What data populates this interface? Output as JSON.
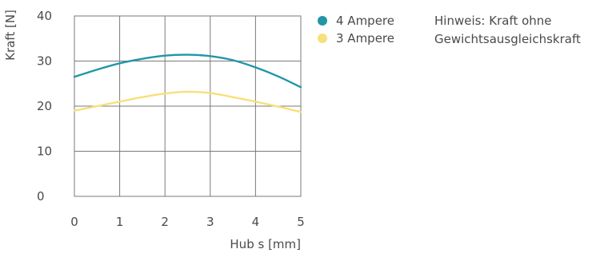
{
  "chart_data": {
    "type": "line",
    "xlabel": "Hub s [mm]",
    "ylabel": "Kraft [N]",
    "xlim": [
      0,
      5
    ],
    "ylim": [
      0,
      40
    ],
    "xticks": [
      "0",
      "1",
      "2",
      "3",
      "4",
      "5"
    ],
    "yticks": [
      "0",
      "10",
      "20",
      "30",
      "40"
    ],
    "grid": true,
    "legend_position": "right",
    "series": [
      {
        "name": "4 Ampere",
        "color": "#2196a6",
        "x": [
          0,
          0.5,
          1,
          1.5,
          2,
          2.5,
          3,
          3.5,
          4,
          4.5,
          5
        ],
        "y": [
          26.5,
          28.1,
          29.5,
          30.5,
          31.2,
          31.4,
          31.1,
          30.2,
          28.6,
          26.6,
          24.2
        ]
      },
      {
        "name": "3 Ampere",
        "color": "#f7e07a",
        "x": [
          0,
          0.5,
          1,
          1.5,
          2,
          2.5,
          3,
          3.5,
          4,
          4.5,
          5
        ],
        "y": [
          19.0,
          20.0,
          21.0,
          22.0,
          22.8,
          23.2,
          22.9,
          22.0,
          21.0,
          19.9,
          18.7
        ]
      }
    ],
    "note": {
      "line1": "Hinweis: Kraft ohne",
      "line2": "Gewichtsausgleichskraft"
    }
  }
}
